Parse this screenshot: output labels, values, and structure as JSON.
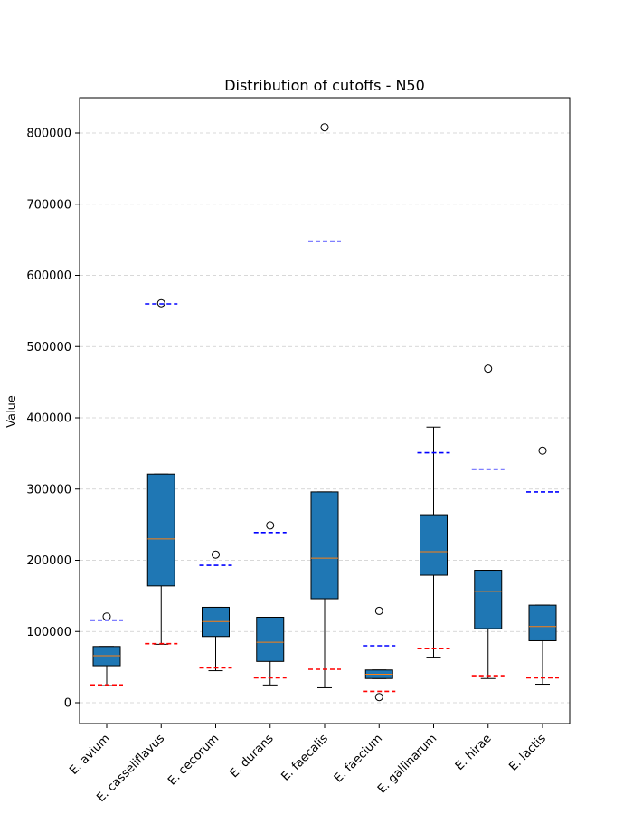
{
  "chart_data": {
    "type": "box",
    "title": "Distribution of cutoffs - N50",
    "xlabel": "",
    "ylabel": "Value",
    "ylim": [
      -30000,
      850000
    ],
    "yticks": [
      0,
      100000,
      200000,
      300000,
      400000,
      500000,
      600000,
      700000,
      800000
    ],
    "ytick_labels": [
      "0",
      "100000",
      "200000",
      "300000",
      "400000",
      "500000",
      "600000",
      "700000",
      "800000"
    ],
    "grid": "horizontal-dashed",
    "colors": {
      "box_fill": "#1f77b4",
      "median": "#ff7f0e",
      "upper_cutoff": "#0000ff",
      "lower_cutoff": "#ff0000",
      "grid": "#cccccc"
    },
    "categories": [
      "E. avium",
      "E. casseliflavus",
      "E. cecorum",
      "E. durans",
      "E. faecalis",
      "E. faecium",
      "E. gallinarum",
      "E. hirae",
      "E. lactis"
    ],
    "boxes": [
      {
        "whislo": 24000,
        "q1": 52000,
        "med": 66000,
        "q3": 79000,
        "whishi": 79000,
        "fliers": [
          121000
        ],
        "upper_cutoff": 116000,
        "lower_cutoff": 25000
      },
      {
        "whislo": 82000,
        "q1": 164000,
        "med": 230000,
        "q3": 321000,
        "whishi": 321000,
        "fliers": [
          561000
        ],
        "upper_cutoff": 560000,
        "lower_cutoff": 83000
      },
      {
        "whislo": 45000,
        "q1": 93000,
        "med": 114000,
        "q3": 134000,
        "whishi": 134000,
        "fliers": [
          208000
        ],
        "upper_cutoff": 193000,
        "lower_cutoff": 49000
      },
      {
        "whislo": 25000,
        "q1": 58000,
        "med": 85000,
        "q3": 120000,
        "whishi": 120000,
        "fliers": [
          249000
        ],
        "upper_cutoff": 239000,
        "lower_cutoff": 35000
      },
      {
        "whislo": 21000,
        "q1": 146000,
        "med": 203000,
        "q3": 296000,
        "whishi": 296000,
        "fliers": [
          808000
        ],
        "upper_cutoff": 648000,
        "lower_cutoff": 47000
      },
      {
        "whislo": 34000,
        "q1": 34000,
        "med": 40000,
        "q3": 46000,
        "whishi": 46000,
        "fliers": [
          129000,
          8000
        ],
        "upper_cutoff": 80000,
        "lower_cutoff": 16000
      },
      {
        "whislo": 64000,
        "q1": 179000,
        "med": 212000,
        "q3": 264000,
        "whishi": 387000,
        "fliers": [],
        "upper_cutoff": 351000,
        "lower_cutoff": 76000
      },
      {
        "whislo": 34000,
        "q1": 104000,
        "med": 156000,
        "q3": 186000,
        "whishi": 186000,
        "fliers": [
          469000
        ],
        "upper_cutoff": 328000,
        "lower_cutoff": 38000
      },
      {
        "whislo": 26000,
        "q1": 87000,
        "med": 107000,
        "q3": 137000,
        "whishi": 137000,
        "fliers": [
          354000
        ],
        "upper_cutoff": 296000,
        "lower_cutoff": 35000
      }
    ]
  }
}
